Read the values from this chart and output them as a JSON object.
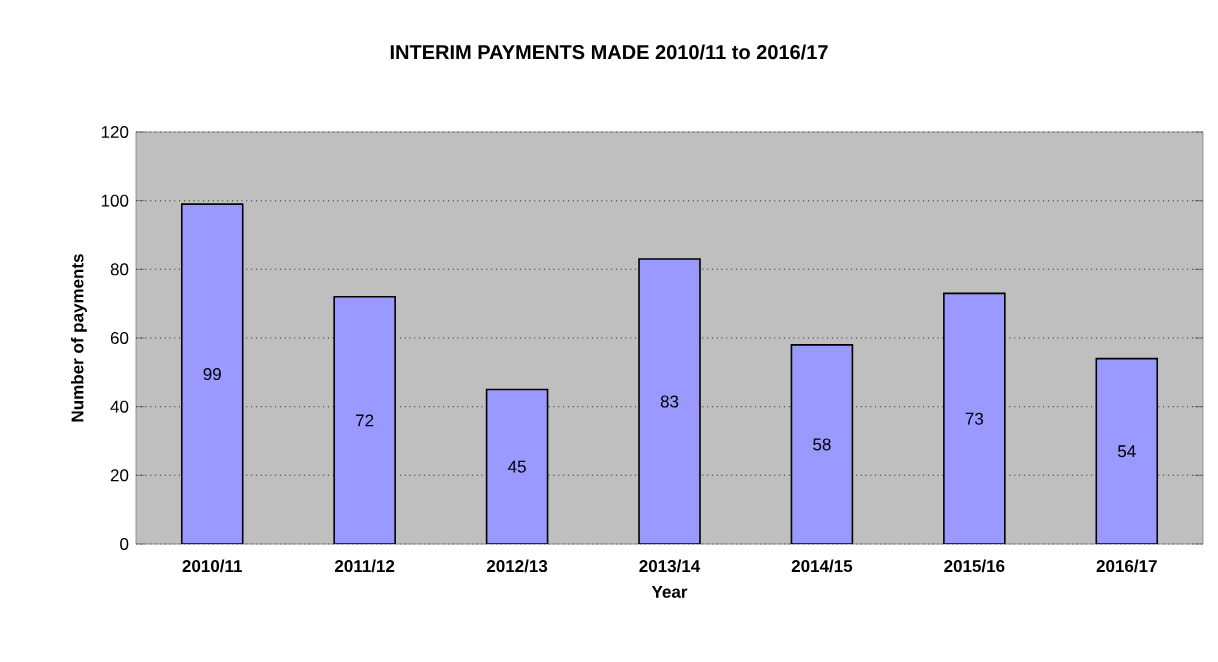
{
  "chart_data": {
    "type": "bar",
    "title": "INTERIM PAYMENTS MADE 2010/11 to 2016/17",
    "xlabel": "Year",
    "ylabel": "Number of payments",
    "categories": [
      "2010/11",
      "2011/12",
      "2012/13",
      "2013/14",
      "2014/15",
      "2015/16",
      "2016/17"
    ],
    "values": [
      99,
      72,
      45,
      83,
      58,
      73,
      54
    ],
    "color": "#9999ff",
    "ylim": [
      0,
      120
    ],
    "yticks": [
      0,
      20,
      40,
      60,
      80,
      100,
      120
    ],
    "grid": "y",
    "data_labels": true
  }
}
